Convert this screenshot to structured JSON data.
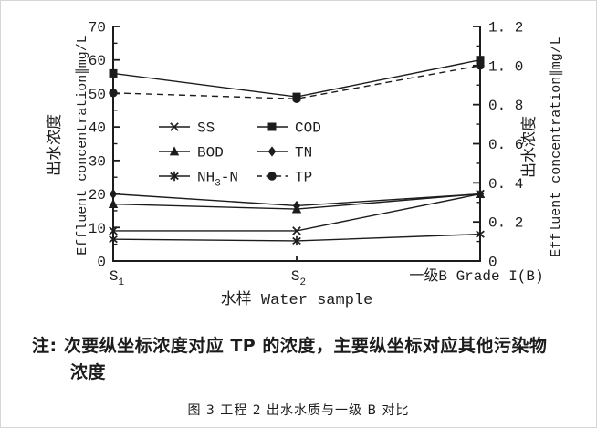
{
  "figure": {
    "note_line1": "注: 次要纵坐标浓度对应 TP 的浓度，主要纵坐标对应其他污染物",
    "note_line2": "浓度",
    "caption": "图 3 工程 2 出水水质与一级 B 对比"
  },
  "chart_data": {
    "type": "line",
    "title": "",
    "categories": [
      "S₁",
      "S₂",
      "一级B Grade I(B)"
    ],
    "x_axis_label": "水样 Water sample",
    "left_axis": {
      "label_cn": "出水浓度",
      "label_en": "Effluent concentration∥mg/L",
      "min": 0,
      "max": 70,
      "tick_labels": [
        "0",
        "10",
        "20",
        "30",
        "40",
        "50",
        "60",
        "70"
      ],
      "minor_step": 5
    },
    "right_axis": {
      "label_cn": "出水浓度",
      "label_en": "Effluent concentration∥mg/L",
      "min": 0,
      "max": 1.2,
      "tick_labels": [
        "0",
        "0. 2",
        "0. 4",
        "0. 6",
        "0. 8",
        "1. 0",
        "1. 2"
      ],
      "minor_step": 0.1
    },
    "series": [
      {
        "name": "SS",
        "marker": "x",
        "axis": "left",
        "dash": false,
        "values": [
          9,
          9,
          20
        ]
      },
      {
        "name": "COD",
        "marker": "square",
        "axis": "left",
        "dash": false,
        "values": [
          56,
          49,
          60
        ]
      },
      {
        "name": "BOD",
        "marker": "triangle",
        "axis": "left",
        "dash": false,
        "values": [
          17,
          15.5,
          20
        ]
      },
      {
        "name": "TN",
        "marker": "diamond",
        "axis": "left",
        "dash": false,
        "values": [
          20,
          16.5,
          20
        ]
      },
      {
        "name": "NH₃-N",
        "marker": "star",
        "axis": "left",
        "dash": false,
        "values": [
          6.5,
          6,
          8
        ]
      },
      {
        "name": "TP",
        "marker": "circle",
        "axis": "right",
        "dash": true,
        "values": [
          0.86,
          0.83,
          1.0
        ]
      }
    ],
    "legend": {
      "columns": [
        [
          "SS",
          "BOD",
          "NH₃-N"
        ],
        [
          "COD",
          "TN",
          "TP"
        ]
      ],
      "position": "inside-center-left"
    },
    "grid": false,
    "colors": {
      "line": "#1c1c1c",
      "text": "#1c1c1c",
      "background": "#ffffff"
    }
  }
}
